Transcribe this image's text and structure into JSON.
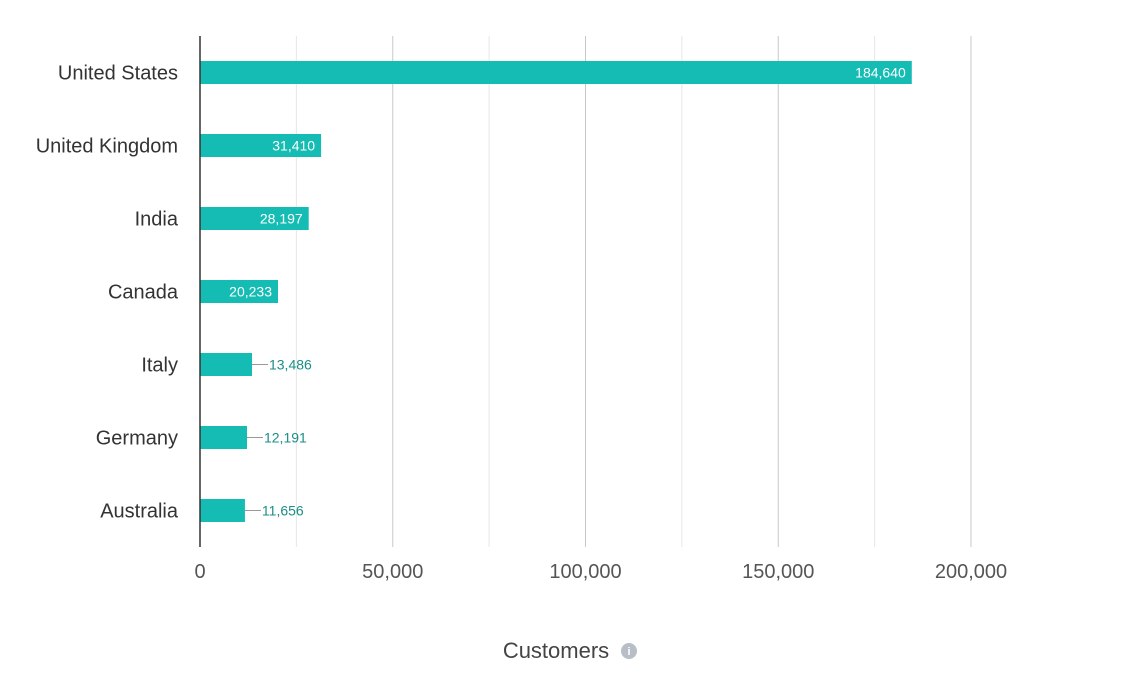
{
  "chart_data": {
    "type": "bar",
    "orientation": "horizontal",
    "categories": [
      "United States",
      "United Kingdom",
      "India",
      "Canada",
      "Italy",
      "Germany",
      "Australia"
    ],
    "values": [
      184640,
      31410,
      28197,
      20233,
      13486,
      12191,
      11656
    ],
    "value_labels": [
      "184,640",
      "31,410",
      "28,197",
      "20,233",
      "13,486",
      "12,191",
      "11,656"
    ],
    "xlabel": "Customers",
    "ylabel": "",
    "xlim": [
      0,
      200000
    ],
    "xticks": [
      0,
      50000,
      100000,
      150000,
      200000
    ],
    "xtick_labels": [
      "0",
      "50,000",
      "100,000",
      "150,000",
      "200,000"
    ],
    "minor_gridlines": true,
    "grid": true,
    "legend": "none",
    "bar_color": "#14bcb3",
    "label_color_outside": "#1a8f86",
    "info_icon": "info-icon"
  }
}
